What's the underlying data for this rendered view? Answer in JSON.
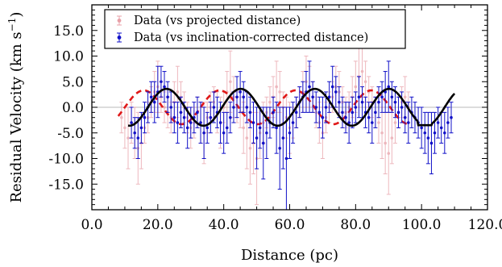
{
  "chart_data": {
    "type": "scatter",
    "xlabel": "Distance (pc)",
    "ylabel_main": "Residual Velocity (km s",
    "ylabel_unit_sup": "−1",
    "ylabel_close": ")",
    "xlim": [
      0,
      120
    ],
    "ylim": [
      -20,
      20
    ],
    "x_ticks": [
      0,
      20,
      40,
      60,
      80,
      100,
      120
    ],
    "x_tick_labels": [
      "0.0",
      "20.0",
      "40.0",
      "60.0",
      "80.0",
      "100.0",
      "120.0"
    ],
    "y_ticks": [
      -15,
      -10,
      -5,
      0,
      5,
      10,
      15
    ],
    "y_tick_labels": [
      "-15.0",
      "-10.0",
      "-5.0",
      "0.0",
      "5.0",
      "10.0",
      "15.0"
    ],
    "zero_line": true,
    "legend_position": "top-left",
    "colors": {
      "projected": "#e8a0a8",
      "corrected": "#1010c8",
      "fit_solid": "#000000",
      "fit_dashed": "#e01818",
      "zero_line": "#b8b8b8"
    },
    "series": [
      {
        "name": "Data (vs projected distance)",
        "style": "errorbar",
        "x": [
          9,
          10,
          11,
          12,
          13,
          14,
          15,
          16,
          17,
          18,
          19,
          20,
          21,
          22,
          23,
          24,
          25,
          26,
          27,
          28,
          29,
          30,
          31,
          32,
          33,
          34,
          35,
          36,
          37,
          38,
          39,
          40,
          41,
          42,
          43,
          44,
          45,
          46,
          47,
          48,
          49,
          50,
          51,
          52,
          53,
          54,
          55,
          56,
          57,
          58,
          59,
          60,
          61,
          62,
          63,
          64,
          65,
          66,
          67,
          68,
          69,
          70,
          71,
          72,
          73,
          74,
          75,
          76,
          77,
          78,
          79,
          80,
          81,
          82,
          83,
          84,
          85,
          86,
          87,
          88,
          89,
          90,
          91,
          92,
          93,
          94,
          95,
          96
        ],
        "y": [
          -2,
          -4,
          -6,
          -3,
          -5,
          -8,
          -7,
          -4,
          -2,
          1,
          3,
          4,
          2,
          0,
          -1,
          -2,
          1,
          3,
          2,
          0,
          -2,
          -4,
          -3,
          -1,
          -3,
          -5,
          -2,
          0,
          1,
          -1,
          -3,
          0,
          3,
          5,
          2,
          0,
          -1,
          -4,
          -6,
          -8,
          -7,
          -10,
          -5,
          -3,
          -1,
          1,
          2,
          4,
          3,
          0,
          -2,
          -4,
          -3,
          -1,
          1,
          3,
          5,
          4,
          2,
          -1,
          -3,
          -5,
          -2,
          0,
          2,
          4,
          3,
          1,
          -1,
          0,
          2,
          4,
          6,
          7,
          5,
          3,
          1,
          -1,
          -3,
          -5,
          -7,
          -9,
          -6,
          -3,
          -1,
          1,
          2,
          0
        ],
        "yerr": [
          3,
          4,
          6,
          4,
          5,
          7,
          5,
          3,
          3,
          3,
          4,
          5,
          3,
          3,
          3,
          3,
          4,
          5,
          3,
          3,
          3,
          4,
          3,
          3,
          4,
          6,
          3,
          3,
          3,
          4,
          5,
          3,
          4,
          6,
          4,
          3,
          3,
          5,
          6,
          7,
          6,
          9,
          5,
          4,
          3,
          3,
          4,
          5,
          4,
          3,
          4,
          5,
          3,
          3,
          3,
          4,
          5,
          4,
          3,
          3,
          4,
          5,
          3,
          3,
          3,
          4,
          4,
          3,
          3,
          3,
          4,
          5,
          6,
          5,
          4,
          3,
          3,
          3,
          4,
          5,
          6,
          8,
          5,
          4,
          3,
          3,
          4,
          3
        ]
      },
      {
        "name": "Data (vs inclination-corrected distance)",
        "style": "errorbar",
        "x": [
          12,
          13,
          14,
          15,
          16,
          17,
          18,
          19,
          20,
          21,
          22,
          23,
          24,
          25,
          26,
          27,
          28,
          29,
          30,
          31,
          32,
          33,
          34,
          35,
          36,
          37,
          38,
          39,
          40,
          41,
          42,
          43,
          44,
          45,
          46,
          47,
          48,
          49,
          50,
          51,
          52,
          53,
          54,
          55,
          56,
          57,
          58,
          59,
          60,
          61,
          62,
          63,
          64,
          65,
          66,
          67,
          68,
          69,
          70,
          71,
          72,
          73,
          74,
          75,
          76,
          77,
          78,
          79,
          80,
          81,
          82,
          83,
          84,
          85,
          86,
          87,
          88,
          89,
          90,
          91,
          92,
          93,
          94,
          95,
          96,
          97,
          98,
          99,
          100,
          101,
          102,
          103,
          104,
          105,
          106,
          107,
          108,
          109
        ],
        "y": [
          -3,
          -5,
          -6,
          -4,
          -2,
          0,
          2,
          1,
          3,
          5,
          4,
          2,
          0,
          -2,
          -3,
          -1,
          -2,
          -4,
          -3,
          -2,
          -1,
          -3,
          -5,
          -4,
          -2,
          0,
          -1,
          -3,
          -5,
          -4,
          -2,
          0,
          2,
          3,
          2,
          0,
          -1,
          -3,
          -6,
          -4,
          -7,
          -5,
          -3,
          -1,
          -4,
          -8,
          -6,
          -10,
          -5,
          -3,
          -1,
          1,
          2,
          3,
          4,
          2,
          0,
          -1,
          -2,
          0,
          2,
          4,
          3,
          1,
          -1,
          -2,
          -3,
          -1,
          0,
          2,
          1,
          -1,
          -2,
          -3,
          -1,
          1,
          2,
          3,
          4,
          2,
          1,
          -1,
          0,
          -2,
          -3,
          -1,
          -2,
          -3,
          -4,
          -5,
          -6,
          -7,
          -5,
          -3,
          -4,
          -5,
          -3,
          -2
        ],
        "yerr": [
          3,
          3,
          4,
          3,
          3,
          3,
          3,
          4,
          5,
          3,
          3,
          3,
          3,
          3,
          4,
          3,
          3,
          4,
          3,
          3,
          3,
          4,
          5,
          3,
          3,
          3,
          3,
          4,
          4,
          3,
          3,
          3,
          4,
          4,
          3,
          3,
          3,
          4,
          6,
          4,
          7,
          5,
          3,
          3,
          5,
          8,
          6,
          10,
          5,
          4,
          3,
          3,
          3,
          4,
          5,
          3,
          3,
          3,
          4,
          3,
          3,
          4,
          3,
          3,
          3,
          3,
          4,
          3,
          3,
          4,
          3,
          3,
          3,
          4,
          3,
          3,
          3,
          4,
          5,
          3,
          3,
          3,
          3,
          3,
          4,
          3,
          3,
          3,
          4,
          4,
          5,
          6,
          4,
          3,
          3,
          4,
          3,
          3
        ]
      },
      {
        "name": "",
        "style": "solid",
        "model": "sine",
        "amplitude": 3.6,
        "period": 22.5,
        "phase_x": 17,
        "x_range": [
          11,
          110
        ],
        "flat_segment": [
          99,
          103,
          -3.5
        ]
      },
      {
        "name": "",
        "style": "dashed",
        "model": "sine",
        "amplitude": 3.3,
        "period": 23,
        "phase_x": 10,
        "x_range": [
          8,
          96
        ]
      }
    ]
  }
}
